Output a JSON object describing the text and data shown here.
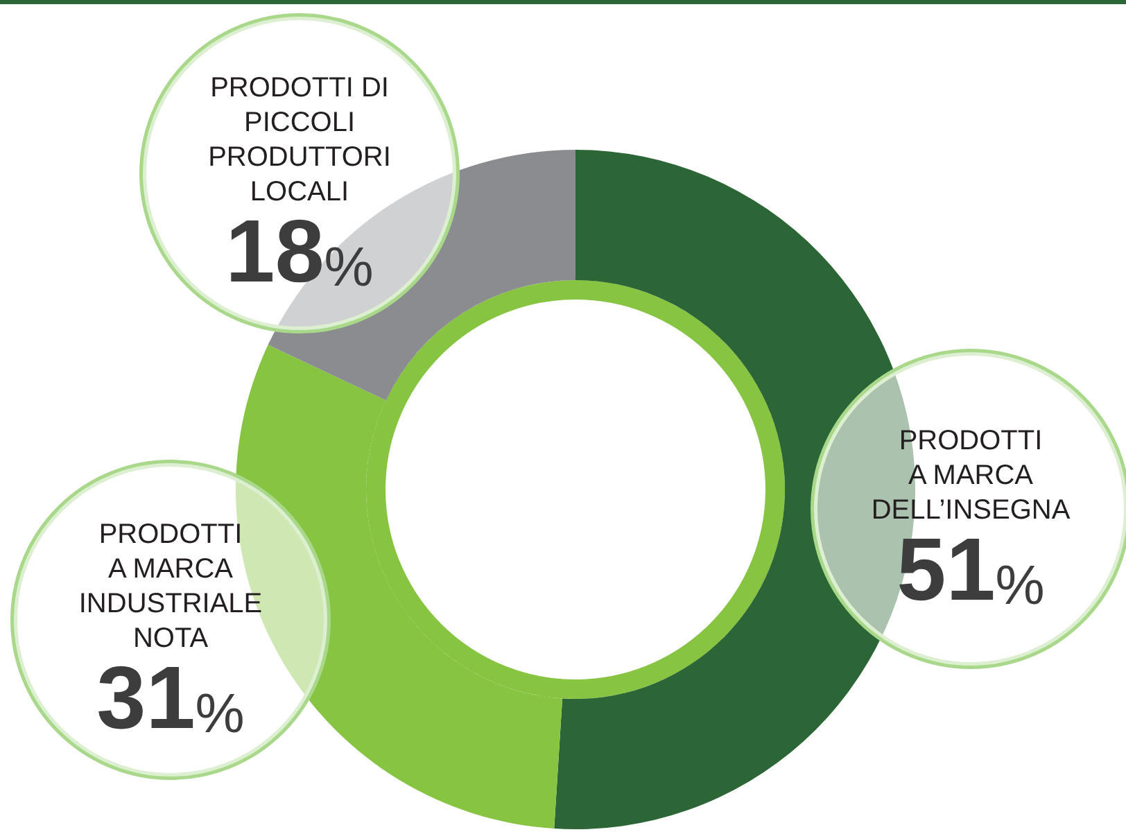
{
  "chart_data": {
    "type": "donut",
    "categories": [
      "PRODOTTI\nA MARCA\nDELL’INSEGNA",
      "PRODOTTI\nA MARCA\nINDUSTRIALE\nNOTA",
      "PRODOTTI DI\nPICCOLI\nPRODUTTORI\nLOCALI"
    ],
    "values": [
      51,
      31,
      18
    ],
    "colors": [
      "#2c6636",
      "#86c441",
      "#8b8c8f"
    ],
    "value_labels": [
      "51%",
      "31%",
      "18%"
    ],
    "legend": false
  }
}
